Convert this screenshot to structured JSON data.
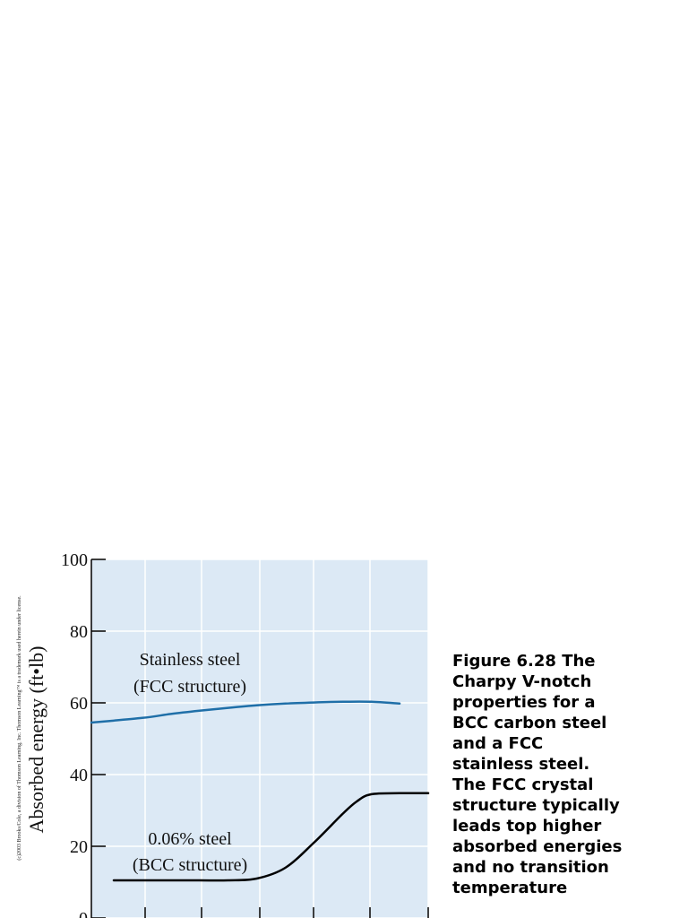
{
  "chart_data": {
    "type": "line",
    "ylabel": "Absorbed energy (ft•lb)",
    "ylim": [
      0,
      100
    ],
    "y_ticks": [
      "0",
      "20",
      "40",
      "60",
      "80",
      "100"
    ],
    "grid": true,
    "background_color": "#dce9f5",
    "grid_color": "#ffffff",
    "series": [
      {
        "label_lines": [
          "Stainless steel",
          "(FCC structure)"
        ],
        "color": "#1f6fa8",
        "x": [
          0,
          1,
          2,
          3,
          4,
          5,
          6,
          7,
          8,
          9,
          10
        ],
        "y": [
          54.5,
          55.8,
          56.9,
          57.8,
          58.6,
          59.3,
          59.8,
          60.1,
          60.3,
          60.3,
          59.8
        ]
      },
      {
        "label_lines": [
          "0.06% steel",
          "(BCC structure)"
        ],
        "color": "#000000",
        "x": [
          0,
          1,
          2,
          3,
          4,
          5,
          6,
          7,
          8,
          8.5,
          9,
          10,
          11
        ],
        "y": [
          10.5,
          10.5,
          10.5,
          10.5,
          10.5,
          11,
          14,
          21,
          29,
          32.5,
          34.5,
          34.8,
          34.8
        ]
      }
    ]
  },
  "copyright": "(c)2003 Brooks/Cole, a division of Thomson Learning, Inc. Thomson Learning™ is a trademark used herein under license.",
  "caption_lines": [
    "Figure 6.28  The",
    "Charpy V-notch",
    "properties for a",
    "BCC carbon steel",
    "and a FCC",
    "stainless steel.",
    "The FCC crystal",
    "structure typically",
    "leads top higher",
    "absorbed energies",
    "and no transition",
    "temperature"
  ]
}
